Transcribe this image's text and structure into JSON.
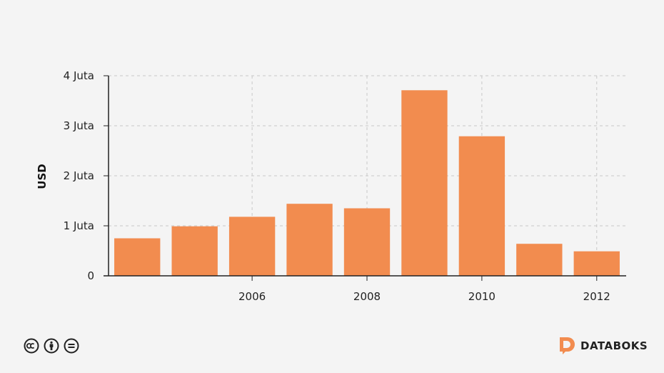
{
  "chart_data": {
    "type": "bar",
    "x": [
      2004,
      2005,
      2006,
      2007,
      2008,
      2009,
      2010,
      2011,
      2012
    ],
    "values": [
      750000,
      990000,
      1180000,
      1440000,
      1350000,
      3710000,
      2790000,
      640000,
      490000
    ],
    "x_tick_labels": [
      "2006",
      "2008",
      "2010",
      "2012"
    ],
    "x_ticks": [
      2006,
      2008,
      2010,
      2012
    ],
    "y_ticks": [
      0,
      1000000,
      2000000,
      3000000,
      4000000
    ],
    "y_tick_labels": [
      "0",
      "1 Juta",
      "2 Juta",
      "3 Juta",
      "4 Juta"
    ],
    "ylim": [
      0,
      4000000
    ],
    "ylabel": "USD",
    "xlabel": "",
    "title": "",
    "grid": true,
    "bar_color": "#f28c4f"
  },
  "footer": {
    "license_icons": [
      "cc-icon",
      "by-icon",
      "nd-icon"
    ],
    "brand_name": "DATABOKS",
    "brand_color": "#f28c4f"
  }
}
